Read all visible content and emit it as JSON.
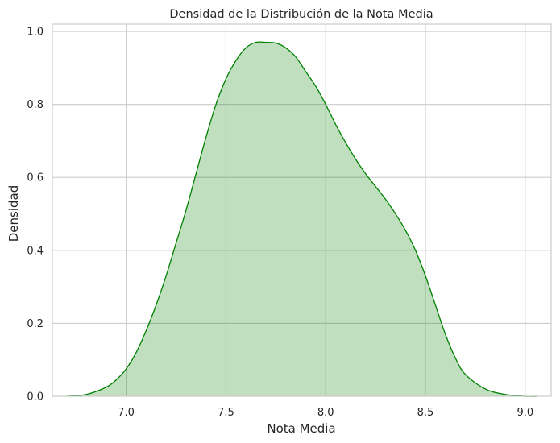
{
  "chart_data": {
    "type": "area",
    "title": "Densidad de la Distribución de la Nota Media",
    "xlabel": "Nota Media",
    "ylabel": "Densidad",
    "xlim": [
      6.63,
      9.13
    ],
    "ylim": [
      0.0,
      1.02
    ],
    "xticks": [
      7.0,
      7.5,
      8.0,
      8.5,
      9.0
    ],
    "xtick_labels": [
      "7.0",
      "7.5",
      "8.0",
      "8.5",
      "9.0"
    ],
    "yticks": [
      0.0,
      0.2,
      0.4,
      0.6,
      0.8,
      1.0
    ],
    "ytick_labels": [
      "0.0",
      "0.2",
      "0.4",
      "0.6",
      "0.8",
      "1.0"
    ],
    "grid": true,
    "colors": {
      "line": "#008000",
      "fill": "#008000",
      "grid": "#cccccc",
      "frame": "#cccccc"
    },
    "fill_opacity": 0.25,
    "series": [
      {
        "x": [
          6.7,
          6.8,
          6.9,
          6.95,
          7.0,
          7.05,
          7.1,
          7.15,
          7.2,
          7.25,
          7.3,
          7.35,
          7.4,
          7.45,
          7.5,
          7.55,
          7.6,
          7.65,
          7.7,
          7.75,
          7.8,
          7.85,
          7.9,
          7.95,
          8.0,
          8.05,
          8.1,
          8.15,
          8.2,
          8.25,
          8.3,
          8.35,
          8.4,
          8.45,
          8.5,
          8.55,
          8.6,
          8.65,
          8.7,
          8.8,
          8.9,
          9.0,
          9.06
        ],
        "y": [
          0.0,
          0.005,
          0.025,
          0.045,
          0.075,
          0.12,
          0.18,
          0.25,
          0.33,
          0.42,
          0.51,
          0.61,
          0.71,
          0.8,
          0.87,
          0.92,
          0.955,
          0.97,
          0.97,
          0.968,
          0.955,
          0.93,
          0.89,
          0.85,
          0.8,
          0.745,
          0.695,
          0.65,
          0.61,
          0.575,
          0.54,
          0.5,
          0.455,
          0.4,
          0.33,
          0.25,
          0.17,
          0.105,
          0.06,
          0.02,
          0.005,
          0.0,
          0.0
        ]
      }
    ]
  }
}
